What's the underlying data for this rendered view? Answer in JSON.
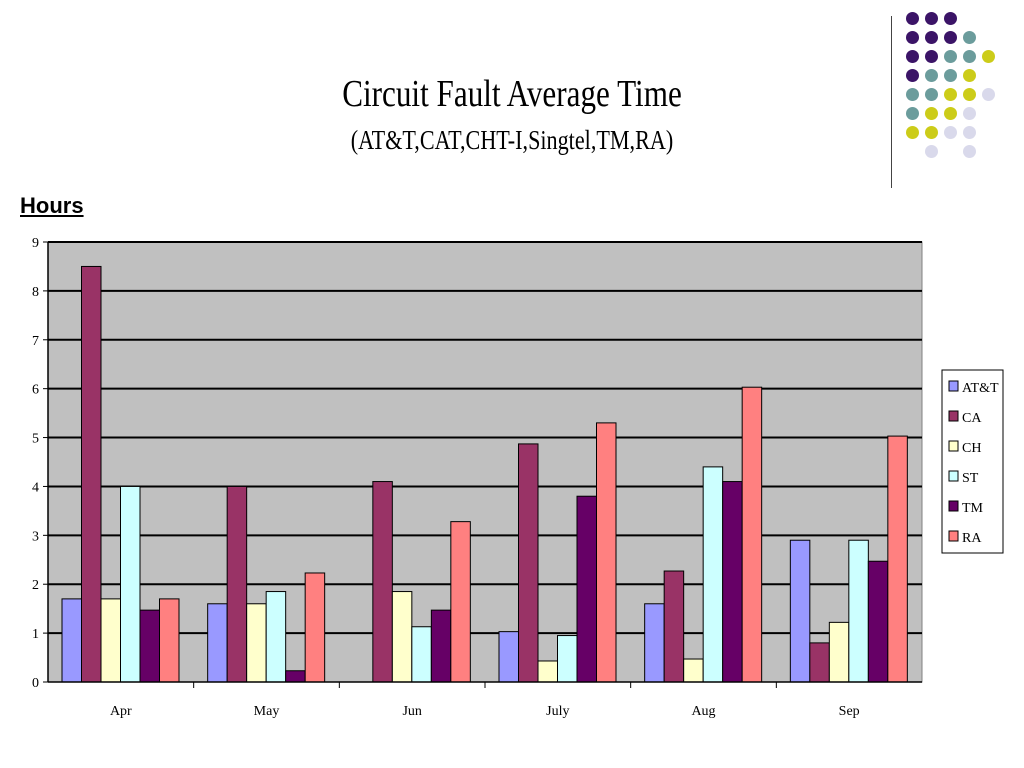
{
  "header": {
    "title": "Circuit Fault Average Time",
    "subtitle": "(AT&T,CAT,CHT-I,Singtel,TM,RA)"
  },
  "decoration": {
    "dot_rows": [
      [
        "#3b1467",
        "#3b1467",
        "#3b1467",
        null,
        null
      ],
      [
        "#3b1467",
        "#3b1467",
        "#3b1467",
        "#6b9c9c",
        null
      ],
      [
        "#3b1467",
        "#3b1467",
        "#6b9c9c",
        "#6b9c9c",
        "#cccc19"
      ],
      [
        "#3b1467",
        "#6b9c9c",
        "#6b9c9c",
        "#cccc19",
        null
      ],
      [
        "#6b9c9c",
        "#6b9c9c",
        "#cccc19",
        "#cccc19",
        "#d9d9eb"
      ],
      [
        "#6b9c9c",
        "#cccc19",
        "#cccc19",
        "#d9d9eb",
        null
      ],
      [
        "#cccc19",
        "#cccc19",
        "#d9d9eb",
        "#d9d9eb",
        null
      ],
      [
        null,
        "#d9d9eb",
        null,
        "#d9d9eb",
        null
      ]
    ]
  },
  "chart_data": {
    "type": "bar",
    "title": "Circuit Fault Average Time",
    "subtitle": "(AT&T,CAT,CHT-I,Singtel,TM,RA)",
    "ylabel": "Hours",
    "xlabel": "",
    "categories": [
      "Apr",
      "May",
      "Jun",
      "July",
      "Aug",
      "Sep"
    ],
    "ylim": [
      0,
      9
    ],
    "yticks": [
      0,
      1,
      2,
      3,
      4,
      5,
      6,
      7,
      8,
      9
    ],
    "grid": true,
    "plot_background": "#c0c0c0",
    "legend_position": "right",
    "series": [
      {
        "name": "AT&T",
        "color": "#9999ff",
        "values": [
          1.7,
          1.6,
          0,
          1.03,
          1.6,
          2.9
        ]
      },
      {
        "name": "CA",
        "color": "#993366",
        "values": [
          8.5,
          4.0,
          4.1,
          4.87,
          2.27,
          0.8
        ]
      },
      {
        "name": "CH",
        "color": "#ffffcc",
        "values": [
          1.7,
          1.6,
          1.85,
          0.43,
          0.47,
          1.22
        ]
      },
      {
        "name": "ST",
        "color": "#ccffff",
        "values": [
          4.0,
          1.85,
          1.13,
          0.95,
          4.4,
          2.9
        ]
      },
      {
        "name": "TM",
        "color": "#660066",
        "values": [
          1.47,
          0.23,
          1.47,
          3.8,
          4.1,
          2.47
        ]
      },
      {
        "name": "RA",
        "color": "#ff8080",
        "values": [
          1.7,
          2.23,
          3.28,
          5.3,
          6.03,
          5.03
        ]
      }
    ]
  }
}
